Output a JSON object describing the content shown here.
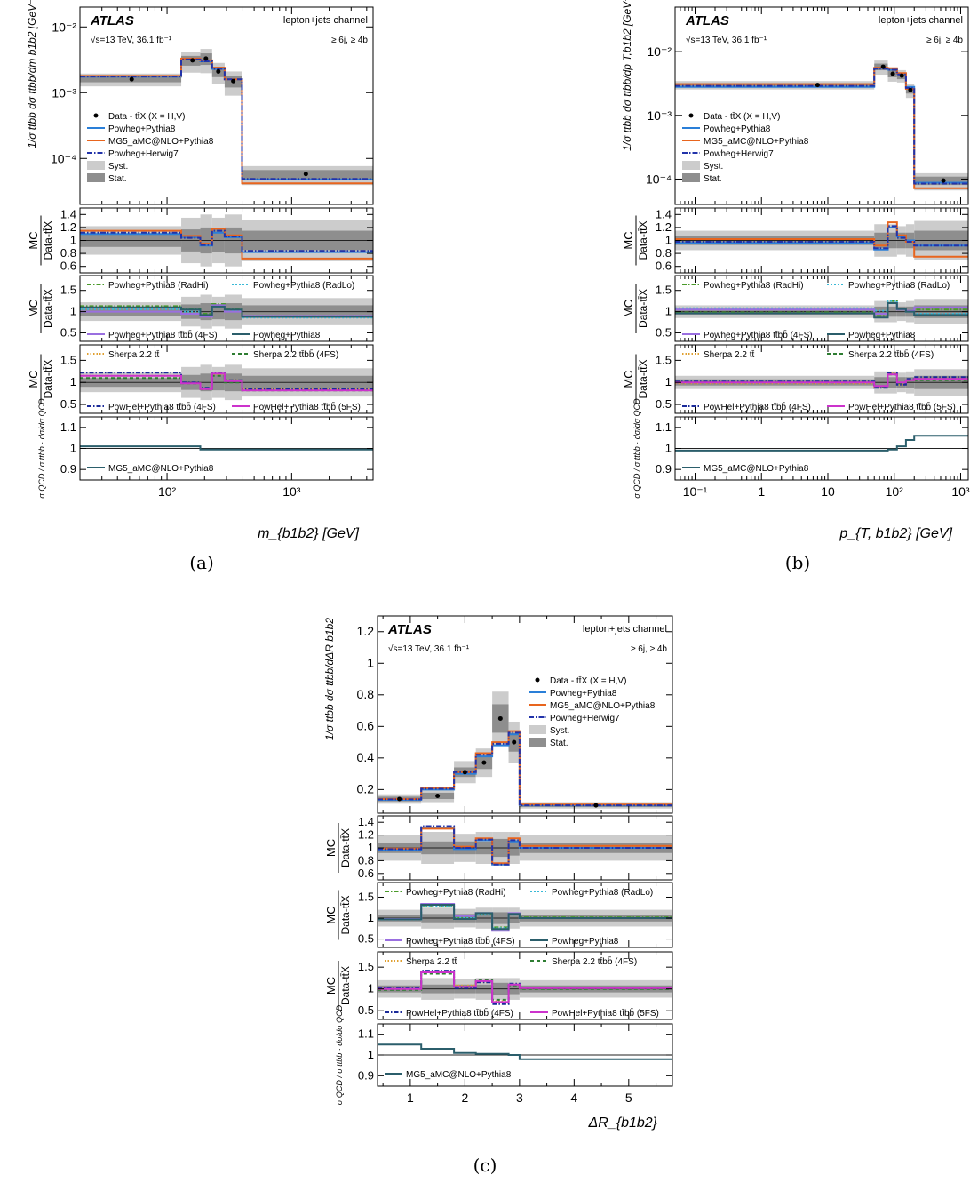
{
  "captions": [
    "(a)",
    "(b)",
    "(c)"
  ],
  "common": {
    "atlas": "ATLAS",
    "energy": "√s=13 TeV, 36.1 fb⁻¹",
    "channel": "lepton+jets channel",
    "selection": "≥ 6j, ≥ 4b",
    "legend_top": [
      "Data - tt̄X (X = H,V)",
      "Powheg+Pythia8",
      "MG5_aMC@NLO+Pythia8",
      "Powheg+Herwig7",
      "Syst.",
      "Stat."
    ],
    "ratio_ylabel": [
      "MC",
      "Data-tt̄X"
    ],
    "qcd_ylabel": "σ QCD / σ ttbb · dσ/dσ QCD",
    "panel3_legend": [
      "Powheg+Pythia8 (RadHi)",
      "Powheg+Pythia8 (RadLo)",
      "Powheg+Pythia8 tt̄bb̄ (4FS)",
      "Powheg+Pythia8"
    ],
    "panel4_legend": [
      "Sherpa 2.2 tt̄",
      "Sherpa 2.2 tt̄bb̄ (4FS)",
      "PowHel+Pythia8 tt̄bb̄ (4FS)",
      "PowHel+Pythia8 tt̄bb̄ (5FS)"
    ],
    "panel5_legend": [
      "MG5_aMC@NLO+Pythia8"
    ],
    "colors": {
      "data": "#000000",
      "powpy": "#2a7fd8",
      "mg5": "#e8651e",
      "herwig": "#2233aa",
      "syst": "#cccccc",
      "stat": "#8e8e8e",
      "radhi": "#4a9a2a",
      "radlo": "#39b9d6",
      "pow4fs": "#9a6fe0",
      "powpy_dark": "#2b5e6b",
      "sherpa_tt": "#e0a030",
      "sherpa4fs": "#2e7d32",
      "powhel4fs": "#1a2a99",
      "powhel5fs": "#cc33cc",
      "qcd": "#2b5e6b"
    }
  },
  "chart_data": [
    {
      "type": "line",
      "id": "a",
      "xlabel": "m_{b1b2} [GeV]",
      "ylabel": "1/σ ttbb dσ ttbb/dm b1b2 [GeV⁻¹]",
      "xscale": "log",
      "xlim": [
        20,
        4500
      ],
      "x_tick_labels": [
        "10²",
        "10³"
      ],
      "top_ylim": [
        2e-05,
        0.02
      ],
      "top_y_tick_labels": [
        "10⁻²",
        "10⁻³",
        "10⁻⁴"
      ],
      "bin_edges": [
        20,
        130,
        185,
        230,
        290,
        400,
        4500
      ],
      "data_x": [
        52,
        160,
        205,
        258,
        340,
        1300
      ],
      "data": [
        0.0016,
        0.0031,
        0.0033,
        0.0021,
        0.0015,
        5.8e-05
      ],
      "syst_rel": [
        0.22,
        0.35,
        0.4,
        0.35,
        0.4,
        0.32
      ],
      "stat_rel": [
        0.1,
        0.17,
        0.2,
        0.18,
        0.2,
        0.15
      ],
      "series": [
        {
          "name": "Powheg+Pythia8",
          "values": [
            0.00175,
            0.0032,
            0.003,
            0.0023,
            0.0016,
            4.8e-05
          ]
        },
        {
          "name": "MG5_aMC@NLO+Pythia8",
          "values": [
            0.0018,
            0.0033,
            0.0031,
            0.0024,
            0.0016,
            4.2e-05
          ]
        },
        {
          "name": "Powheg+Herwig7",
          "values": [
            0.00176,
            0.0032,
            0.003,
            0.0023,
            0.0016,
            4.9e-05
          ]
        }
      ],
      "ratio1": {
        "ylim": [
          0.5,
          1.5
        ],
        "ticks": [
          1.4,
          1.2,
          1,
          0.8,
          0.6
        ],
        "syst": [
          0.22,
          0.35,
          0.4,
          0.35,
          0.4,
          0.32
        ],
        "stat": [
          0.1,
          0.17,
          0.2,
          0.18,
          0.2,
          0.15
        ],
        "series": [
          {
            "name": "Powheg+Pythia8",
            "values": [
              1.1,
              1.05,
              0.92,
              1.12,
              1.05,
              0.82
            ]
          },
          {
            "name": "MG5_aMC@NLO+Pythia8",
            "values": [
              1.15,
              1.07,
              0.95,
              1.18,
              1.08,
              0.72
            ]
          },
          {
            "name": "Powheg+Herwig7",
            "values": [
              1.12,
              1.04,
              0.93,
              1.15,
              1.06,
              0.84
            ]
          }
        ]
      },
      "ratio2": {
        "ylim": [
          0.3,
          1.85
        ],
        "ticks": [
          1.5,
          1,
          0.5
        ],
        "syst": [
          0.22,
          0.35,
          0.4,
          0.35,
          0.4,
          0.32
        ],
        "stat": [
          0.1,
          0.17,
          0.2,
          0.18,
          0.2,
          0.15
        ],
        "series": [
          {
            "name": "Powheg+Pythia8 (RadHi)",
            "values": [
              1.13,
              1.06,
              0.95,
              1.18,
              1.07,
              0.9
            ]
          },
          {
            "name": "Powheg+Pythia8 (RadLo)",
            "values": [
              1.06,
              1.0,
              0.9,
              1.1,
              1.02,
              0.86
            ]
          },
          {
            "name": "Powheg+Pythia8 tt̄bb̄ (4FS)",
            "values": [
              1.0,
              0.95,
              0.88,
              1.15,
              1.0,
              0.9
            ]
          },
          {
            "name": "Powheg+Pythia8",
            "values": [
              1.1,
              1.05,
              0.92,
              1.12,
              1.05,
              0.88
            ]
          }
        ]
      },
      "ratio3": {
        "ylim": [
          0.3,
          1.85
        ],
        "ticks": [
          1.5,
          1,
          0.5
        ],
        "syst": [
          0.22,
          0.35,
          0.4,
          0.35,
          0.4,
          0.32
        ],
        "stat": [
          0.1,
          0.17,
          0.2,
          0.18,
          0.2,
          0.15
        ],
        "series": [
          {
            "name": "Sherpa 2.2 tt̄",
            "values": [
              1.15,
              1.0,
              0.85,
              1.18,
              1.05,
              0.85
            ]
          },
          {
            "name": "Sherpa 2.2 tt̄bb̄ (4FS)",
            "values": [
              1.1,
              0.98,
              0.85,
              1.15,
              1.0,
              0.82
            ]
          },
          {
            "name": "PowHel+Pythia8 tt̄bb̄ (4FS)",
            "values": [
              1.22,
              1.0,
              0.88,
              1.22,
              1.05,
              0.85
            ]
          },
          {
            "name": "PowHel+Pythia8 tt̄bb̄ (5FS)",
            "values": [
              1.15,
              0.98,
              0.85,
              1.2,
              1.03,
              0.82
            ]
          }
        ]
      },
      "ratio4": {
        "ylim": [
          0.85,
          1.15
        ],
        "ticks": [
          1.1,
          1,
          0.9
        ],
        "series": [
          {
            "name": "MG5_aMC@NLO+Pythia8",
            "values": [
              1.01,
              1.01,
              0.995,
              0.995,
              0.995,
              0.995
            ]
          }
        ]
      }
    },
    {
      "type": "line",
      "id": "b",
      "xlabel": "p_{T, b1b2} [GeV]",
      "ylabel": "1/σ ttbb dσ ttbb/dp T,b1b2 [GeV⁻¹]",
      "xscale": "log",
      "xlim": [
        0.05,
        1300
      ],
      "x_tick_labels": [
        "10⁻¹",
        "1",
        "10",
        "10²",
        "10³"
      ],
      "top_ylim": [
        4e-05,
        0.05
      ],
      "top_y_tick_labels": [
        "10⁻²",
        "10⁻³",
        "10⁻⁴"
      ],
      "bin_edges": [
        0.05,
        50,
        80,
        110,
        150,
        200,
        1300
      ],
      "data_x": [
        7,
        68,
        95,
        130,
        175,
        550
      ],
      "data": [
        0.003,
        0.0058,
        0.0045,
        0.0042,
        0.0025,
        9.5e-05
      ],
      "syst_rel": [
        0.15,
        0.25,
        0.25,
        0.22,
        0.25,
        0.3
      ],
      "stat_rel": [
        0.07,
        0.12,
        0.12,
        0.12,
        0.12,
        0.15
      ],
      "series": [
        {
          "name": "Powheg+Pythia8",
          "values": [
            0.0028,
            0.0055,
            0.0052,
            0.0045,
            0.0028,
            8.8e-05
          ]
        },
        {
          "name": "MG5_aMC@NLO+Pythia8",
          "values": [
            0.0031,
            0.0056,
            0.0055,
            0.0046,
            0.0026,
            7.2e-05
          ]
        },
        {
          "name": "Powheg+Herwig7",
          "values": [
            0.0029,
            0.0054,
            0.0052,
            0.0044,
            0.0027,
            8.5e-05
          ]
        }
      ],
      "ratio1": {
        "ylim": [
          0.5,
          1.5
        ],
        "ticks": [
          1.4,
          1.2,
          1,
          0.8,
          0.6
        ],
        "syst": [
          0.15,
          0.25,
          0.25,
          0.22,
          0.25,
          0.3
        ],
        "stat": [
          0.07,
          0.12,
          0.12,
          0.12,
          0.12,
          0.15
        ],
        "series": [
          {
            "name": "Powheg+Pythia8",
            "values": [
              0.96,
              0.86,
              1.2,
              1.06,
              1.0,
              0.92
            ]
          },
          {
            "name": "MG5_aMC@NLO+Pythia8",
            "values": [
              1.02,
              0.92,
              1.28,
              1.08,
              0.98,
              0.75
            ]
          },
          {
            "name": "Powheg+Herwig7",
            "values": [
              0.98,
              0.88,
              1.22,
              1.04,
              0.98,
              0.92
            ]
          }
        ]
      },
      "ratio2": {
        "ylim": [
          0.3,
          1.85
        ],
        "ticks": [
          1.5,
          1,
          0.5
        ],
        "syst": [
          0.15,
          0.25,
          0.25,
          0.22,
          0.25,
          0.3
        ],
        "stat": [
          0.07,
          0.12,
          0.12,
          0.12,
          0.12,
          0.15
        ],
        "series": [
          {
            "name": "Powheg+Pythia8 (RadHi)",
            "values": [
              0.98,
              0.9,
              1.25,
              1.06,
              1.02,
              1.05
            ]
          },
          {
            "name": "Powheg+Pythia8 (RadLo)",
            "values": [
              1.08,
              1.02,
              1.25,
              1.06,
              1.0,
              0.95
            ]
          },
          {
            "name": "Powheg+Pythia8 tt̄bb̄ (4FS)",
            "values": [
              1.05,
              0.95,
              1.2,
              1.05,
              1.02,
              1.1
            ]
          },
          {
            "name": "Powheg+Pythia8",
            "values": [
              0.96,
              0.86,
              1.2,
              1.06,
              1.0,
              0.92
            ]
          }
        ]
      },
      "ratio3": {
        "ylim": [
          0.3,
          1.85
        ],
        "ticks": [
          1.5,
          1,
          0.5
        ],
        "syst": [
          0.15,
          0.25,
          0.25,
          0.22,
          0.25,
          0.3
        ],
        "stat": [
          0.07,
          0.12,
          0.12,
          0.12,
          0.12,
          0.15
        ],
        "series": [
          {
            "name": "Sherpa 2.2 tt̄",
            "values": [
              0.98,
              0.9,
              1.2,
              0.95,
              1.05,
              1.1
            ]
          },
          {
            "name": "Sherpa 2.2 tt̄bb̄ (4FS)",
            "values": [
              1.0,
              0.9,
              1.18,
              0.98,
              1.05,
              1.05
            ]
          },
          {
            "name": "PowHel+Pythia8 tt̄bb̄ (4FS)",
            "values": [
              1.02,
              0.88,
              1.22,
              0.95,
              1.08,
              1.12
            ]
          },
          {
            "name": "PowHel+Pythia8 tt̄bb̄ (5FS)",
            "values": [
              1.0,
              0.92,
              1.18,
              1.0,
              1.05,
              1.08
            ]
          }
        ]
      },
      "ratio4": {
        "ylim": [
          0.85,
          1.15
        ],
        "ticks": [
          1.1,
          1,
          0.9
        ],
        "series": [
          {
            "name": "MG5_aMC@NLO+Pythia8",
            "values": [
              0.99,
              0.99,
              0.995,
              1.01,
              1.04,
              1.06
            ]
          }
        ]
      }
    },
    {
      "type": "line",
      "id": "c",
      "xlabel": "ΔR_{b1b2}",
      "ylabel": "1/σ ttbb dσ ttbb/dΔR b1b2",
      "xscale": "linear",
      "xlim": [
        0.4,
        5.8
      ],
      "x_tick_labels": [
        "1",
        "2",
        "3",
        "4",
        "5"
      ],
      "top_ylim": [
        0.05,
        1.3
      ],
      "top_y_tick_labels": [
        "1.2",
        "1",
        "0.8",
        "0.6",
        "0.4",
        "0.2"
      ],
      "bin_edges": [
        0.4,
        1.2,
        1.8,
        2.2,
        2.5,
        2.8,
        3.0,
        5.8
      ],
      "data_x": [
        0.8,
        1.5,
        2.0,
        2.35,
        2.65,
        2.9,
        4.4
      ],
      "data": [
        0.14,
        0.16,
        0.31,
        0.37,
        0.65,
        0.5,
        0.1
      ],
      "syst_abs": [
        0.03,
        0.04,
        0.07,
        0.09,
        0.17,
        0.13,
        0.02
      ],
      "stat_abs": [
        0.015,
        0.02,
        0.03,
        0.04,
        0.09,
        0.06,
        0.01
      ],
      "series": [
        {
          "name": "Powheg+Pythia8",
          "values": [
            0.135,
            0.2,
            0.3,
            0.41,
            0.48,
            0.55,
            0.1
          ]
        },
        {
          "name": "MG5_aMC@NLO+Pythia8",
          "values": [
            0.14,
            0.21,
            0.31,
            0.43,
            0.5,
            0.57,
            0.105
          ]
        },
        {
          "name": "Powheg+Herwig7",
          "values": [
            0.138,
            0.205,
            0.31,
            0.42,
            0.49,
            0.56,
            0.1
          ]
        }
      ],
      "ratio1": {
        "ylim": [
          0.5,
          1.5
        ],
        "ticks": [
          1.4,
          1.2,
          1,
          0.8,
          0.6
        ],
        "syst_abs": [
          0.2,
          0.25,
          0.22,
          0.25,
          0.25,
          0.25,
          0.2
        ],
        "stat_abs": [
          0.08,
          0.1,
          0.1,
          0.1,
          0.14,
          0.12,
          0.08
        ],
        "series": [
          {
            "name": "Powheg+Pythia8",
            "values": [
              0.97,
              1.32,
              0.98,
              1.12,
              0.74,
              1.1,
              1.0
            ]
          },
          {
            "name": "MG5_aMC@NLO+Pythia8",
            "values": [
              0.99,
              1.3,
              1.02,
              1.15,
              0.76,
              1.15,
              1.03
            ]
          },
          {
            "name": "Powheg+Herwig7",
            "values": [
              0.98,
              1.34,
              1.0,
              1.13,
              0.74,
              1.12,
              1.0
            ]
          }
        ]
      },
      "ratio2": {
        "ylim": [
          0.3,
          1.85
        ],
        "ticks": [
          1.5,
          1,
          0.5
        ],
        "syst_abs": [
          0.2,
          0.25,
          0.22,
          0.25,
          0.25,
          0.25,
          0.2
        ],
        "stat_abs": [
          0.08,
          0.1,
          0.1,
          0.1,
          0.14,
          0.12,
          0.08
        ],
        "series": [
          {
            "name": "Powheg+Pythia8 (RadHi)",
            "values": [
              0.98,
              1.3,
              1.02,
              1.1,
              0.78,
              1.1,
              1.02
            ]
          },
          {
            "name": "Powheg+Pythia8 (RadLo)",
            "values": [
              0.97,
              1.28,
              1.0,
              1.08,
              0.76,
              1.08,
              1.0
            ]
          },
          {
            "name": "Powheg+Pythia8 tt̄bb̄ (4FS)",
            "values": [
              0.98,
              1.34,
              1.05,
              1.12,
              0.7,
              1.12,
              1.0
            ]
          },
          {
            "name": "Powheg+Pythia8",
            "values": [
              0.97,
              1.32,
              0.98,
              1.12,
              0.74,
              1.1,
              1.0
            ]
          }
        ]
      },
      "ratio3": {
        "ylim": [
          0.3,
          1.85
        ],
        "ticks": [
          1.5,
          1,
          0.5
        ],
        "syst_abs": [
          0.2,
          0.25,
          0.22,
          0.25,
          0.25,
          0.25,
          0.2
        ],
        "stat_abs": [
          0.08,
          0.1,
          0.1,
          0.1,
          0.14,
          0.12,
          0.08
        ],
        "series": [
          {
            "name": "Sherpa 2.2 tt̄",
            "values": [
              1.0,
              1.4,
              1.08,
              1.15,
              0.72,
              1.1,
              1.02
            ]
          },
          {
            "name": "Sherpa 2.2 tt̄bb̄ (4FS)",
            "values": [
              0.98,
              1.35,
              1.05,
              1.2,
              0.75,
              1.08,
              1.0
            ]
          },
          {
            "name": "PowHel+Pythia8 tt̄bb̄ (4FS)",
            "values": [
              1.02,
              1.42,
              1.02,
              1.15,
              0.65,
              1.12,
              1.03
            ]
          },
          {
            "name": "PowHel+Pythia8 tt̄bb̄ (5FS)",
            "values": [
              1.0,
              1.38,
              1.05,
              1.18,
              0.7,
              1.1,
              1.02
            ]
          }
        ]
      },
      "ratio4": {
        "ylim": [
          0.85,
          1.15
        ],
        "ticks": [
          1.1,
          1,
          0.9
        ],
        "series": [
          {
            "name": "MG5_aMC@NLO+Pythia8",
            "values": [
              1.05,
              1.03,
              1.01,
              1.005,
              1.005,
              1.0,
              0.98
            ]
          }
        ]
      }
    }
  ]
}
